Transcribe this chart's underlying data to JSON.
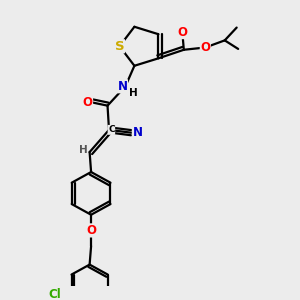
{
  "bg_color": "#ececec",
  "bond_color": "#000000",
  "bond_width": 1.6,
  "atom_colors": {
    "S": "#ccaa00",
    "O": "#ff0000",
    "N": "#0000cc",
    "Cl": "#33aa00",
    "C": "#000000",
    "H": "#555555"
  },
  "font_size": 8.5,
  "fig_width": 3.0,
  "fig_height": 3.0,
  "dpi": 100
}
